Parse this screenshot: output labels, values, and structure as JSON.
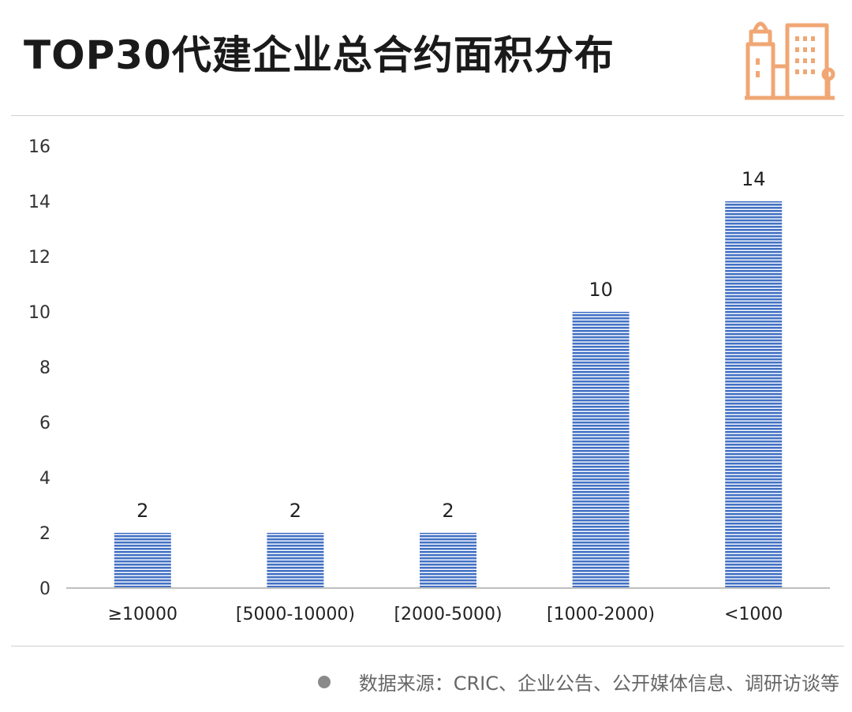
{
  "header": {
    "title": "TOP30代建企业总合约面积分布"
  },
  "logo": {
    "icon": "city-buildings-icon",
    "color": "#F0A774"
  },
  "chart_data": {
    "type": "bar",
    "categories": [
      "≥10000",
      "[5000-10000)",
      "[2000-5000)",
      "[1000-2000)",
      "<1000"
    ],
    "values": [
      2,
      2,
      2,
      10,
      14
    ],
    "data_labels": [
      "2",
      "2",
      "2",
      "10",
      "14"
    ],
    "ylim": [
      0,
      16
    ],
    "yticks": [
      "0",
      "2",
      "4",
      "6",
      "8",
      "10",
      "12",
      "14",
      "16"
    ],
    "title": "",
    "xlabel": "",
    "ylabel": "",
    "grid": false,
    "bar_color": "#4472C4",
    "bar_pattern": "horizontal-stripes"
  },
  "footer": {
    "source": "数据来源：CRIC、企业公告、公开媒体信息、调研访谈等"
  }
}
